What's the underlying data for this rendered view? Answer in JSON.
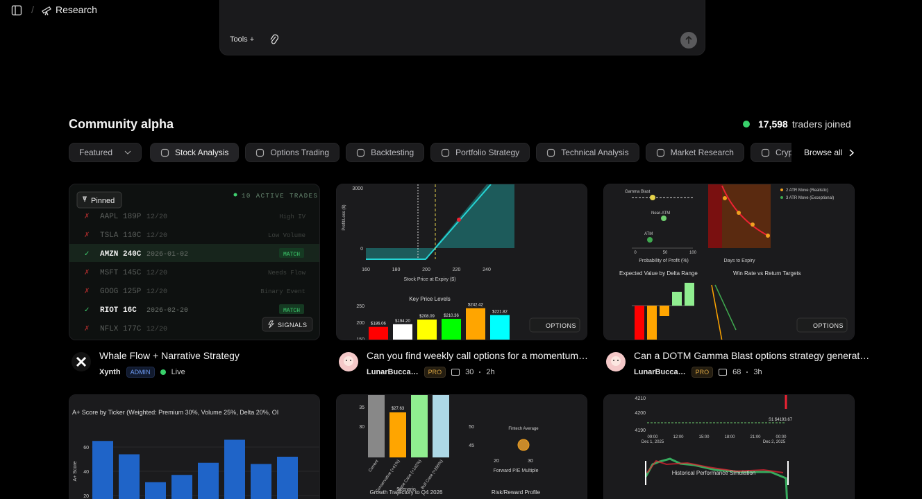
{
  "header": {
    "breadcrumb": "Research"
  },
  "composer": {
    "tools_label": "Tools +"
  },
  "community": {
    "title": "Community alpha",
    "joined_count": "17,598",
    "joined_text": "traders joined"
  },
  "filters": {
    "sort": "Featured",
    "tabs": [
      "Stock Analysis",
      "Options Trading",
      "Backtesting",
      "Portfolio Strategy",
      "Technical Analysis",
      "Market Research",
      "Crypto A"
    ],
    "browse_all": "Browse all"
  },
  "cards": [
    {
      "title": "Whale Flow + Narrative Strategy",
      "author": "Xynth",
      "badge": "ADMIN",
      "status": "Live"
    },
    {
      "title": "Can you find weekly call options for a momentum…",
      "author": "LunarBucca…",
      "badge": "PRO",
      "comments": "30",
      "age": "2h"
    },
    {
      "title": "Can a DOTM Gamma Blast options strategy generat…",
      "author": "LunarBucca…",
      "badge": "PRO",
      "comments": "68",
      "age": "3h"
    }
  ],
  "thumb_whale": {
    "pinned": "Pinned",
    "active": "10 ACTIVE TRADES",
    "tag": "SIGNALS",
    "rows": [
      {
        "status": "✗",
        "contract": "AAPL 189P",
        "expiry": "12/20",
        "note": "High IV"
      },
      {
        "status": "✗",
        "contract": "TSLA 110C",
        "expiry": "12/20",
        "note": "Low Volume"
      },
      {
        "status": "✓",
        "contract": "AMZN 240C",
        "expiry": "2026-01-02",
        "note": "MATCH"
      },
      {
        "status": "✗",
        "contract": "MSFT 145C",
        "expiry": "12/20",
        "note": "Needs Flow"
      },
      {
        "status": "✗",
        "contract": "GOOG 125P",
        "expiry": "12/20",
        "note": "Binary Event"
      },
      {
        "status": "✓",
        "contract": "RIOT 16C",
        "expiry": "2026-02-20",
        "note": "MATCH"
      },
      {
        "status": "✗",
        "contract": "NFLX 177C",
        "expiry": "12/20",
        "note": ""
      }
    ]
  },
  "thumb_payoff": {
    "tag": "OPTIONS",
    "y_label": "Profit/Loss ($)",
    "yticks": [
      3000,
      0
    ],
    "xticks": [
      160,
      180,
      200,
      220,
      240
    ],
    "x_label": "Stock Price at Expiry ($)",
    "levels_title": "Key Price Levels",
    "levels_yticks": [
      250,
      200,
      150
    ],
    "levels": [
      186.06,
      194.2,
      208.09,
      210.36,
      242.42,
      221.82
    ],
    "level_labels": [
      "$186.06",
      "$194.20",
      "$208.09",
      "$210.36",
      "$242.42",
      "$221.82"
    ],
    "level_colors": [
      "#ff0000",
      "#ffffff",
      "#ffff00",
      "#00ff00",
      "#ffa500",
      "#00ffff"
    ]
  },
  "thumb_gamma": {
    "tag": "OPTIONS",
    "points": [
      "Gamma Blast",
      "Near-ATM",
      "ATM"
    ],
    "xticks": [
      0,
      50,
      100
    ],
    "x_label": "Probability of Profit (%)",
    "x_label_2": "Days to Expiry",
    "legend": [
      "2 ATR Move (Realistic)",
      "3 ATR Move (Exceptional)"
    ],
    "ev_title": "Expected Value by Delta Range",
    "win_title": "Win Rate vs Return Targets"
  },
  "thumb_score": {
    "title": "A+ Score by Ticker (Weighted: Premium 30%, Volume 25%, Delta 20%, OI",
    "y_label": "A+ Score",
    "yticks": [
      60,
      40,
      20
    ],
    "values": [
      65,
      54,
      31,
      37,
      47,
      66,
      46,
      52
    ]
  },
  "thumb_growth": {
    "yticks": [
      35,
      30
    ],
    "bar_label": "$27.63",
    "categories": [
      "Current",
      "Conservative (+41%)",
      "Base Case (+142%)",
      "Bull Case (+286%)"
    ],
    "x_label": "Scenario",
    "title": "Growth Trajectory to Q4 2026",
    "rr_yticks": [
      50,
      45
    ],
    "rr_xticks": [
      20,
      30
    ],
    "rr_point": "Fintech Average",
    "rr_x_label": "Forward P/E Multiple",
    "rr_title": "Risk/Reward Profile"
  },
  "thumb_sim": {
    "yticks": [
      4210,
      4200,
      4190
    ],
    "times": [
      "09:00",
      "12:00",
      "15:00",
      "18:00",
      "21:00",
      "00:00"
    ],
    "dates": [
      "Dec 1, 2025",
      "Dec 2, 2025"
    ],
    "level": "S1 $4193.67",
    "title": "Historical Performance Simulation"
  }
}
